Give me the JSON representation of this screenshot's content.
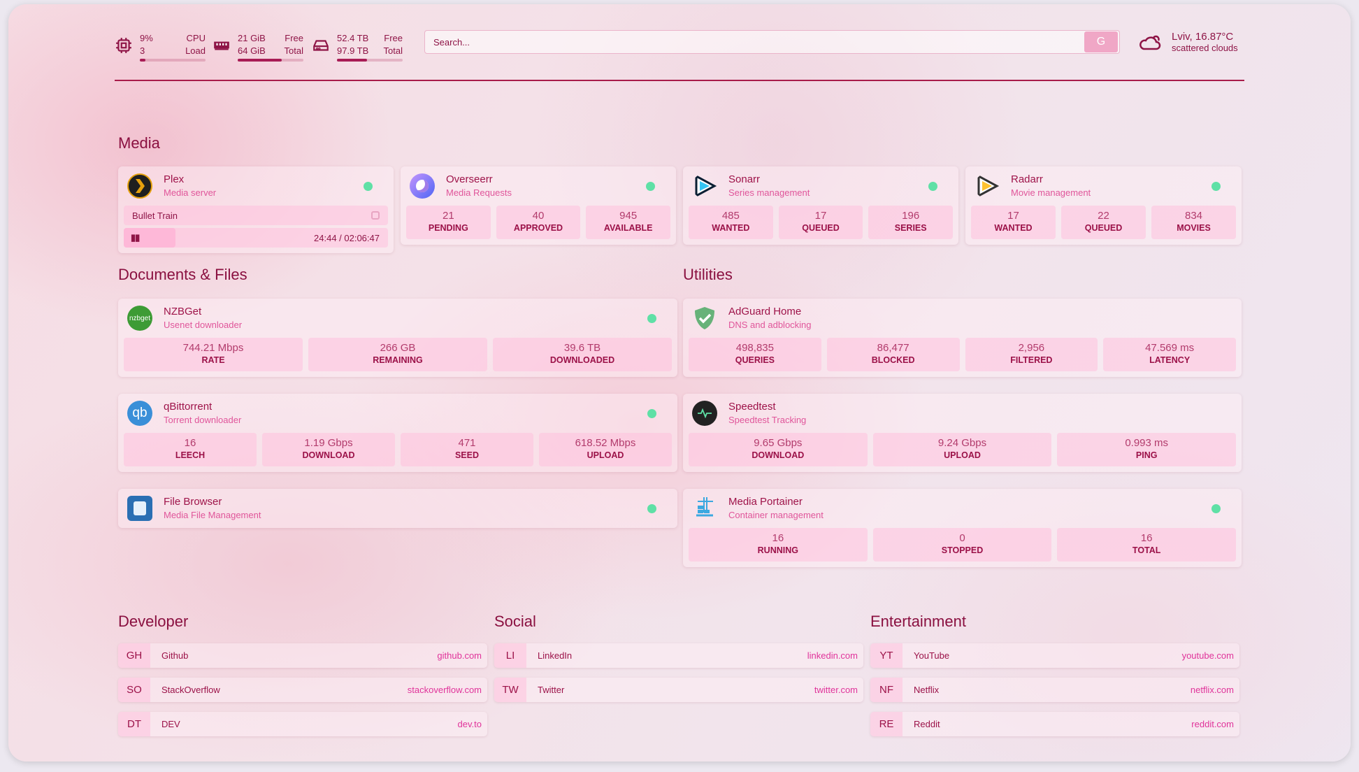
{
  "resources": {
    "cpu": {
      "icon": "cpu-icon",
      "value": "9%",
      "value2": "3",
      "label": "CPU",
      "label2": "Load",
      "percent": 9
    },
    "memory": {
      "icon": "memory-icon",
      "value": "21 GiB",
      "value2": "64 GiB",
      "label": "Free",
      "label2": "Total",
      "percent": 67
    },
    "disk": {
      "icon": "disk-icon",
      "value": "52.4 TB",
      "value2": "97.9 TB",
      "label": "Free",
      "label2": "Total",
      "percent": 46
    }
  },
  "search": {
    "placeholder": "Search...",
    "button": "G"
  },
  "weather": {
    "icon": "cloud-icon",
    "location": "Lviv, 16.87°C",
    "condition": "scattered clouds"
  },
  "colors": {
    "accent": "#a81c55",
    "status_ok": "#5fe0a6",
    "text": "#8e1446",
    "subtitle": "#e0559a"
  },
  "groups": {
    "media": "Media",
    "docs": "Documents & Files",
    "utilities": "Utilities",
    "developer": "Developer",
    "social": "Social",
    "entertainment": "Entertainment"
  },
  "services": {
    "plex": {
      "name": "Plex",
      "desc": "Media server",
      "now_playing": {
        "title": "Bullet Train",
        "time": "24:44 / 02:06:47",
        "progress": 19.5,
        "state": "paused"
      }
    },
    "overseerr": {
      "name": "Overseerr",
      "desc": "Media Requests",
      "stats": [
        {
          "v": "21",
          "l": "PENDING"
        },
        {
          "v": "40",
          "l": "APPROVED"
        },
        {
          "v": "945",
          "l": "AVAILABLE"
        }
      ]
    },
    "sonarr": {
      "name": "Sonarr",
      "desc": "Series management",
      "stats": [
        {
          "v": "485",
          "l": "WANTED"
        },
        {
          "v": "17",
          "l": "QUEUED"
        },
        {
          "v": "196",
          "l": "SERIES"
        }
      ]
    },
    "radarr": {
      "name": "Radarr",
      "desc": "Movie management",
      "stats": [
        {
          "v": "17",
          "l": "WANTED"
        },
        {
          "v": "22",
          "l": "QUEUED"
        },
        {
          "v": "834",
          "l": "MOVIES"
        }
      ]
    },
    "nzbget": {
      "name": "NZBGet",
      "desc": "Usenet downloader",
      "logo_text": "nzbget",
      "stats": [
        {
          "v": "744.21 Mbps",
          "l": "RATE"
        },
        {
          "v": "266 GB",
          "l": "REMAINING"
        },
        {
          "v": "39.6 TB",
          "l": "DOWNLOADED"
        }
      ]
    },
    "qbittorrent": {
      "name": "qBittorrent",
      "desc": "Torrent downloader",
      "logo_text": "qb",
      "stats": [
        {
          "v": "16",
          "l": "LEECH"
        },
        {
          "v": "1.19 Gbps",
          "l": "DOWNLOAD"
        },
        {
          "v": "471",
          "l": "SEED"
        },
        {
          "v": "618.52 Mbps",
          "l": "UPLOAD"
        }
      ]
    },
    "filebrowser": {
      "name": "File Browser",
      "desc": "Media File Management"
    },
    "adguard": {
      "name": "AdGuard Home",
      "desc": "DNS and adblocking",
      "stats": [
        {
          "v": "498,835",
          "l": "QUERIES"
        },
        {
          "v": "86,477",
          "l": "BLOCKED"
        },
        {
          "v": "2,956",
          "l": "FILTERED"
        },
        {
          "v": "47.569 ms",
          "l": "LATENCY"
        }
      ]
    },
    "speedtest": {
      "name": "Speedtest",
      "desc": "Speedtest Tracking",
      "stats": [
        {
          "v": "9.65 Gbps",
          "l": "DOWNLOAD"
        },
        {
          "v": "9.24 Gbps",
          "l": "UPLOAD"
        },
        {
          "v": "0.993 ms",
          "l": "PING"
        }
      ]
    },
    "portainer": {
      "name": "Media Portainer",
      "desc": "Container management",
      "stats": [
        {
          "v": "16",
          "l": "RUNNING"
        },
        {
          "v": "0",
          "l": "STOPPED"
        },
        {
          "v": "16",
          "l": "TOTAL"
        }
      ]
    }
  },
  "bookmarks": {
    "developer": [
      {
        "abbr": "GH",
        "name": "Github",
        "href": "github.com"
      },
      {
        "abbr": "SO",
        "name": "StackOverflow",
        "href": "stackoverflow.com"
      },
      {
        "abbr": "DT",
        "name": "DEV",
        "href": "dev.to"
      }
    ],
    "social": [
      {
        "abbr": "LI",
        "name": "LinkedIn",
        "href": "linkedin.com"
      },
      {
        "abbr": "TW",
        "name": "Twitter",
        "href": "twitter.com"
      }
    ],
    "entertainment": [
      {
        "abbr": "YT",
        "name": "YouTube",
        "href": "youtube.com"
      },
      {
        "abbr": "NF",
        "name": "Netflix",
        "href": "netflix.com"
      },
      {
        "abbr": "RE",
        "name": "Reddit",
        "href": "reddit.com"
      }
    ]
  }
}
